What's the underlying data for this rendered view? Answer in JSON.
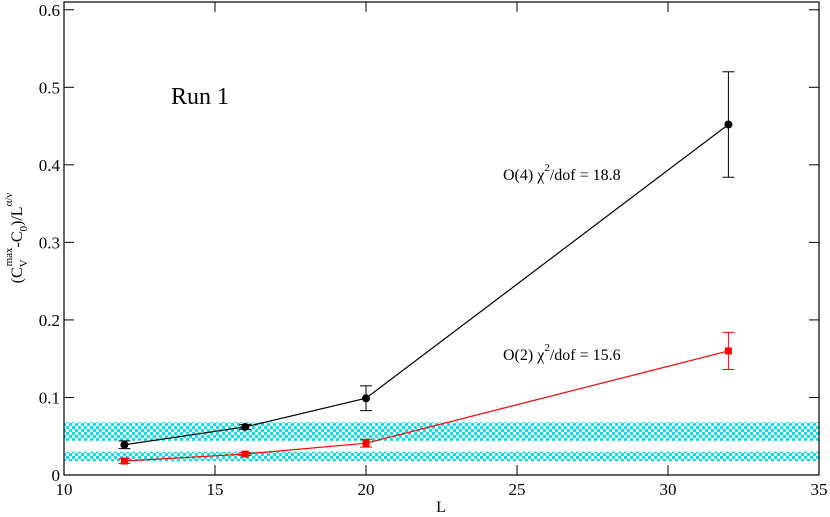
{
  "chart_data": {
    "type": "line",
    "annotation_title": "Run 1",
    "annotation_title_color": "#0000ff",
    "xlabel": "L",
    "ylabel": [
      "(C",
      "V",
      "max",
      "-C",
      "0",
      ")/L",
      "α/ν"
    ],
    "xlim": [
      10,
      35
    ],
    "ylim": [
      0,
      0.61
    ],
    "xticks": [
      10,
      15,
      20,
      25,
      30,
      35
    ],
    "yticks": [
      0,
      0.1,
      0.2,
      0.3,
      0.4,
      0.5,
      0.6
    ],
    "bands": [
      {
        "range": [
          0.044,
          0.068
        ],
        "color": "#00e5ee"
      },
      {
        "range": [
          0.018,
          0.03
        ],
        "color": "#00e5ee"
      }
    ],
    "series": [
      {
        "color": "#000000",
        "marker": "circle",
        "x": [
          12,
          16,
          20,
          32
        ],
        "values": [
          0.039,
          0.062,
          0.099,
          0.452
        ],
        "errors": [
          0.005,
          0.003,
          0.016,
          0.068
        ]
      },
      {
        "color": "#ff0000",
        "marker": "square",
        "x": [
          12,
          16,
          20,
          32
        ],
        "values": [
          0.018,
          0.027,
          0.041,
          0.16
        ],
        "errors": [
          0.003,
          0.002,
          0.005,
          0.024
        ]
      }
    ],
    "annotations": [
      {
        "text": [
          "O(4)  χ",
          "2",
          "/dof = 18.8"
        ],
        "color": "#000000"
      },
      {
        "text": [
          "O(2)  χ",
          "2",
          "/dof = 15.6"
        ],
        "color": "#ff0000"
      }
    ]
  }
}
